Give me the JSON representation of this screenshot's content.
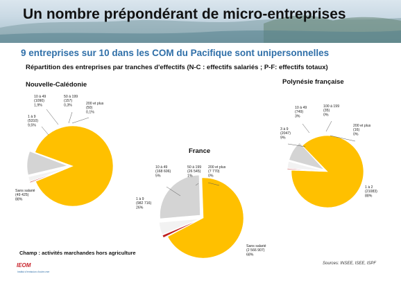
{
  "slide": {
    "title": "Un nombre prépondérant de micro-entreprises",
    "subtitle": "9 entreprises sur 10 dans les COM du Pacifique sont unipersonnelles",
    "caption": "Répartition des entreprises par tranches d'effectifs  (N-C : effectifs salariés ; P-F: effectifs totaux)",
    "scope_note": "Champ : activités marchandes hors agriculture",
    "sources": "Sources: INSEE, ISEE, ISPF",
    "logo_text": "IEOM",
    "logo_sub": "Institut d'émission d'outre-mer"
  },
  "colors": {
    "slice_main": "#ffc000",
    "slice_small": "#d4d4d4",
    "slice_mid": "#c0201e",
    "slice_big": "#f2f2f2",
    "leader": "#555555",
    "title_blue": "#2f6fa8"
  },
  "chart_data": [
    {
      "type": "pie",
      "title": "Nouvelle-Calédonie",
      "slices": [
        {
          "lines": [
            "Sans salarié",
            "(49 425)",
            "88%"
          ],
          "value": 88
        },
        {
          "lines": [
            "1 à 9",
            "(5310)",
            "9,5%"
          ],
          "value": 9.5
        },
        {
          "lines": [
            "10 à 49",
            "(1090)",
            "1,9%"
          ],
          "value": 1.9
        },
        {
          "lines": [
            "50 à 199",
            "(157)",
            "0,3%"
          ],
          "value": 0.3
        },
        {
          "lines": [
            "200 et plus",
            "(50)",
            "0,1%"
          ],
          "value": 0.1
        }
      ]
    },
    {
      "type": "pie",
      "title": "France",
      "slices": [
        {
          "lines": [
            "Sans salarié",
            "(2 566 907)",
            "68%"
          ],
          "value": 68
        },
        {
          "lines": [
            "1 à 9",
            "(982 716)",
            "26%"
          ],
          "value": 26
        },
        {
          "lines": [
            "10 à 49",
            "(168 606)",
            "5%"
          ],
          "value": 5
        },
        {
          "lines": [
            "50 à 199",
            "(26 545)",
            "1%"
          ],
          "value": 1
        },
        {
          "lines": [
            "200 et plus",
            "(7 770)",
            "0%"
          ],
          "value": 0.2
        }
      ]
    },
    {
      "type": "pie",
      "title": "Polynésie française",
      "slices": [
        {
          "lines": [
            "1 à 2",
            "(21083)",
            "88%"
          ],
          "value": 88
        },
        {
          "lines": [
            "3 à 9",
            "(2047)",
            "9%"
          ],
          "value": 9
        },
        {
          "lines": [
            "10 à 49",
            "(749)",
            "3%"
          ],
          "value": 3
        },
        {
          "lines": [
            "100 à 199",
            "(35)",
            "0%"
          ],
          "value": 0.15
        },
        {
          "lines": [
            "200 et plus",
            "(16)",
            "0%"
          ],
          "value": 0.07
        }
      ]
    }
  ]
}
